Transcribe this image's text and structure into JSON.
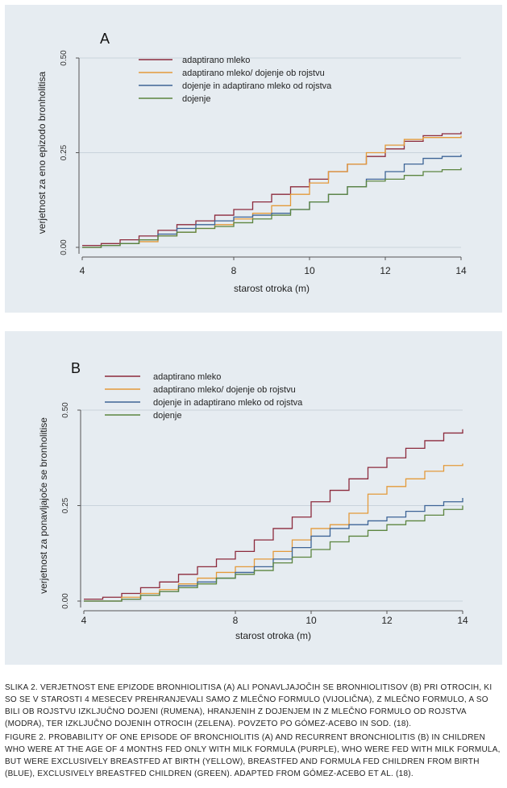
{
  "chart_data": [
    {
      "type": "line",
      "panel_label": "A",
      "xlabel": "starost otroka (m)",
      "ylabel": "verjetnost za eno epizodo bronholitisa",
      "xlim": [
        4,
        14
      ],
      "ylim": [
        0,
        0.5
      ],
      "x_ticks": [
        "4",
        "8",
        "10",
        "12",
        "14"
      ],
      "y_ticks": [
        "0.00",
        "0.25",
        "0.50"
      ],
      "legend_position": "top-center",
      "series": [
        {
          "name": "adaptirano mleko",
          "color": "#8c2a3c",
          "points": [
            [
              4,
              0.005
            ],
            [
              4.5,
              0.01
            ],
            [
              5,
              0.02
            ],
            [
              5.5,
              0.03
            ],
            [
              6,
              0.045
            ],
            [
              6.5,
              0.06
            ],
            [
              7,
              0.07
            ],
            [
              7.5,
              0.085
            ],
            [
              8,
              0.1
            ],
            [
              8.5,
              0.12
            ],
            [
              9,
              0.14
            ],
            [
              9.5,
              0.16
            ],
            [
              10,
              0.18
            ],
            [
              10.5,
              0.2
            ],
            [
              11,
              0.22
            ],
            [
              11.5,
              0.24
            ],
            [
              12,
              0.26
            ],
            [
              12.5,
              0.28
            ],
            [
              13,
              0.295
            ],
            [
              13.5,
              0.3
            ],
            [
              14,
              0.305
            ]
          ]
        },
        {
          "name": "adaptirano mleko/ dojenje ob rojstvu",
          "color": "#e39a3a",
          "points": [
            [
              4,
              0
            ],
            [
              4.5,
              0.005
            ],
            [
              5,
              0.01
            ],
            [
              5.5,
              0.015
            ],
            [
              6,
              0.03
            ],
            [
              6.5,
              0.04
            ],
            [
              7,
              0.05
            ],
            [
              7.5,
              0.06
            ],
            [
              8,
              0.075
            ],
            [
              8.5,
              0.09
            ],
            [
              9,
              0.11
            ],
            [
              9.5,
              0.14
            ],
            [
              10,
              0.17
            ],
            [
              10.5,
              0.2
            ],
            [
              11,
              0.22
            ],
            [
              11.5,
              0.25
            ],
            [
              12,
              0.27
            ],
            [
              12.5,
              0.285
            ],
            [
              13,
              0.29
            ],
            [
              14,
              0.295
            ]
          ]
        },
        {
          "name": "dojenje in adaptirano mleko od rojstva",
          "color": "#3e6496",
          "points": [
            [
              4,
              0
            ],
            [
              4.5,
              0.005
            ],
            [
              5,
              0.01
            ],
            [
              5.5,
              0.02
            ],
            [
              6,
              0.035
            ],
            [
              6.5,
              0.05
            ],
            [
              7,
              0.06
            ],
            [
              7.5,
              0.07
            ],
            [
              8,
              0.08
            ],
            [
              8.5,
              0.085
            ],
            [
              9,
              0.09
            ],
            [
              9.5,
              0.1
            ],
            [
              10,
              0.12
            ],
            [
              10.5,
              0.14
            ],
            [
              11,
              0.16
            ],
            [
              11.5,
              0.18
            ],
            [
              12,
              0.2
            ],
            [
              12.5,
              0.22
            ],
            [
              13,
              0.235
            ],
            [
              13.5,
              0.24
            ],
            [
              14,
              0.245
            ]
          ]
        },
        {
          "name": "dojenje",
          "color": "#5c8540",
          "points": [
            [
              4,
              0
            ],
            [
              4.5,
              0.005
            ],
            [
              5,
              0.01
            ],
            [
              5.5,
              0.02
            ],
            [
              6,
              0.03
            ],
            [
              6.5,
              0.04
            ],
            [
              7,
              0.05
            ],
            [
              7.5,
              0.055
            ],
            [
              8,
              0.065
            ],
            [
              8.5,
              0.075
            ],
            [
              9,
              0.085
            ],
            [
              9.5,
              0.1
            ],
            [
              10,
              0.12
            ],
            [
              10.5,
              0.14
            ],
            [
              11,
              0.16
            ],
            [
              11.5,
              0.175
            ],
            [
              12,
              0.18
            ],
            [
              12.5,
              0.19
            ],
            [
              13,
              0.2
            ],
            [
              13.5,
              0.205
            ],
            [
              14,
              0.21
            ]
          ]
        }
      ]
    },
    {
      "type": "line",
      "panel_label": "B",
      "xlabel": "starost otroka (m)",
      "ylabel": "verjetnost za ponavljajoče se bronholitise",
      "xlim": [
        4,
        14
      ],
      "ylim": [
        0,
        0.5
      ],
      "x_ticks": [
        "4",
        "8",
        "10",
        "12",
        "14"
      ],
      "y_ticks": [
        "0.00",
        "0.25",
        "0.50"
      ],
      "legend_position": "top-left",
      "series": [
        {
          "name": "adaptirano mleko",
          "color": "#8c2a3c",
          "points": [
            [
              4,
              0.005
            ],
            [
              4.5,
              0.01
            ],
            [
              5,
              0.02
            ],
            [
              5.5,
              0.035
            ],
            [
              6,
              0.05
            ],
            [
              6.5,
              0.07
            ],
            [
              7,
              0.09
            ],
            [
              7.5,
              0.11
            ],
            [
              8,
              0.13
            ],
            [
              8.5,
              0.16
            ],
            [
              9,
              0.19
            ],
            [
              9.5,
              0.22
            ],
            [
              10,
              0.26
            ],
            [
              10.5,
              0.29
            ],
            [
              11,
              0.32
            ],
            [
              11.5,
              0.35
            ],
            [
              12,
              0.375
            ],
            [
              12.5,
              0.4
            ],
            [
              13,
              0.42
            ],
            [
              13.5,
              0.44
            ],
            [
              14,
              0.45
            ]
          ]
        },
        {
          "name": "adaptirano mleko/ dojenje ob rojstvu",
          "color": "#e39a3a",
          "points": [
            [
              4,
              0
            ],
            [
              5,
              0.01
            ],
            [
              5.5,
              0.02
            ],
            [
              6,
              0.03
            ],
            [
              6.5,
              0.045
            ],
            [
              7,
              0.06
            ],
            [
              7.5,
              0.075
            ],
            [
              8,
              0.09
            ],
            [
              8.5,
              0.11
            ],
            [
              9,
              0.13
            ],
            [
              9.5,
              0.16
            ],
            [
              10,
              0.19
            ],
            [
              10.5,
              0.2
            ],
            [
              11,
              0.23
            ],
            [
              11.5,
              0.28
            ],
            [
              12,
              0.3
            ],
            [
              12.5,
              0.32
            ],
            [
              13,
              0.34
            ],
            [
              13.5,
              0.355
            ],
            [
              14,
              0.36
            ]
          ]
        },
        {
          "name": "dojenje in adaptirano mleko od rojstva",
          "color": "#3e6496",
          "points": [
            [
              4,
              0
            ],
            [
              5,
              0.005
            ],
            [
              5.5,
              0.015
            ],
            [
              6,
              0.025
            ],
            [
              6.5,
              0.04
            ],
            [
              7,
              0.05
            ],
            [
              7.5,
              0.06
            ],
            [
              8,
              0.075
            ],
            [
              8.5,
              0.09
            ],
            [
              9,
              0.11
            ],
            [
              9.5,
              0.14
            ],
            [
              10,
              0.17
            ],
            [
              10.5,
              0.19
            ],
            [
              11,
              0.2
            ],
            [
              11.5,
              0.21
            ],
            [
              12,
              0.22
            ],
            [
              12.5,
              0.235
            ],
            [
              13,
              0.25
            ],
            [
              13.5,
              0.26
            ],
            [
              14,
              0.27
            ]
          ]
        },
        {
          "name": "dojenje",
          "color": "#5c8540",
          "points": [
            [
              4,
              0
            ],
            [
              5,
              0.005
            ],
            [
              5.5,
              0.015
            ],
            [
              6,
              0.025
            ],
            [
              6.5,
              0.035
            ],
            [
              7,
              0.045
            ],
            [
              7.5,
              0.06
            ],
            [
              8,
              0.07
            ],
            [
              8.5,
              0.08
            ],
            [
              9,
              0.1
            ],
            [
              9.5,
              0.115
            ],
            [
              10,
              0.135
            ],
            [
              10.5,
              0.155
            ],
            [
              11,
              0.17
            ],
            [
              11.5,
              0.185
            ],
            [
              12,
              0.2
            ],
            [
              12.5,
              0.21
            ],
            [
              13,
              0.225
            ],
            [
              13.5,
              0.24
            ],
            [
              14,
              0.25
            ]
          ]
        }
      ]
    }
  ],
  "captions": {
    "sl": "SLIKA 2. VERJETNOST ENE EPIZODE BRONHIOLITISA (A) ALI PONAVLJAJOČIH SE BRONHIOLITISOV (B) PRI OTROCIH, KI SO SE V STAROSTI 4 MESECEV PREHRANJEVALI SAMO Z MLEČNO FORMULO (VIJOLIČNA), Z MLEČNO FORMULO, A SO BILI OB ROJSTVU IZKLJUČNO DOJENI (RUMENA), HRANJENIH Z DOJENJEM IN Z MLEČNO FORMULO OD ROJSTVA (MODRA), TER IZKLJUČNO DOJENIH OTROCIH (ZELENA). POVZETO PO GÓMEZ-ACEBO IN SOD. (18).",
    "en": "FIGURE 2. PROBABILITY OF ONE EPISODE OF BRONCHIOLITIS (A) AND RECURRENT BRONCHIOLITIS (B) IN CHILDREN WHO WERE AT THE AGE OF 4 MONTHS FED ONLY WITH MILK FORMULA (PURPLE), WHO WERE FED WITH MILK FORMULA, BUT WERE EXCLUSIVELY BREASTFED AT BIRTH (YELLOW), BREASTFED AND FORMULA FED CHILDREN FROM BIRTH (BLUE), EXCLUSIVELY BREASTFED CHILDREN (GREEN). ADAPTED FROM GÓMEZ-ACEBO ET AL. (18)."
  }
}
